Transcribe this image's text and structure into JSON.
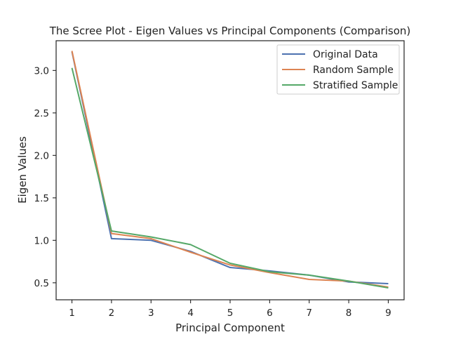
{
  "chart_data": {
    "type": "line",
    "title": "The Scree Plot - Eigen Values vs Principal Components (Comparison)",
    "xlabel": "Principal Component",
    "ylabel": "Eigen Values",
    "x": [
      1,
      2,
      3,
      4,
      5,
      6,
      7,
      8,
      9
    ],
    "xlim": [
      0.6,
      9.4
    ],
    "ylim": [
      0.3,
      3.35
    ],
    "xticks": [
      1,
      2,
      3,
      4,
      5,
      6,
      7,
      8,
      9
    ],
    "yticks": [
      0.5,
      1.0,
      1.5,
      2.0,
      2.5,
      3.0
    ],
    "ytick_labels": [
      "0.5",
      "1.0",
      "1.5",
      "2.0",
      "2.5",
      "3.0"
    ],
    "grid": false,
    "legend_position": "top-right",
    "series": [
      {
        "name": "Original Data",
        "color": "#4c72b0",
        "values": [
          3.22,
          1.02,
          1.0,
          0.87,
          0.68,
          0.64,
          0.59,
          0.51,
          0.49
        ]
      },
      {
        "name": "Random Sample",
        "color": "#dd8452",
        "values": [
          3.23,
          1.08,
          1.02,
          0.86,
          0.71,
          0.62,
          0.54,
          0.52,
          0.45
        ]
      },
      {
        "name": "Stratified Sample",
        "color": "#55a868",
        "values": [
          3.03,
          1.11,
          1.04,
          0.95,
          0.73,
          0.63,
          0.59,
          0.52,
          0.44
        ]
      }
    ]
  }
}
